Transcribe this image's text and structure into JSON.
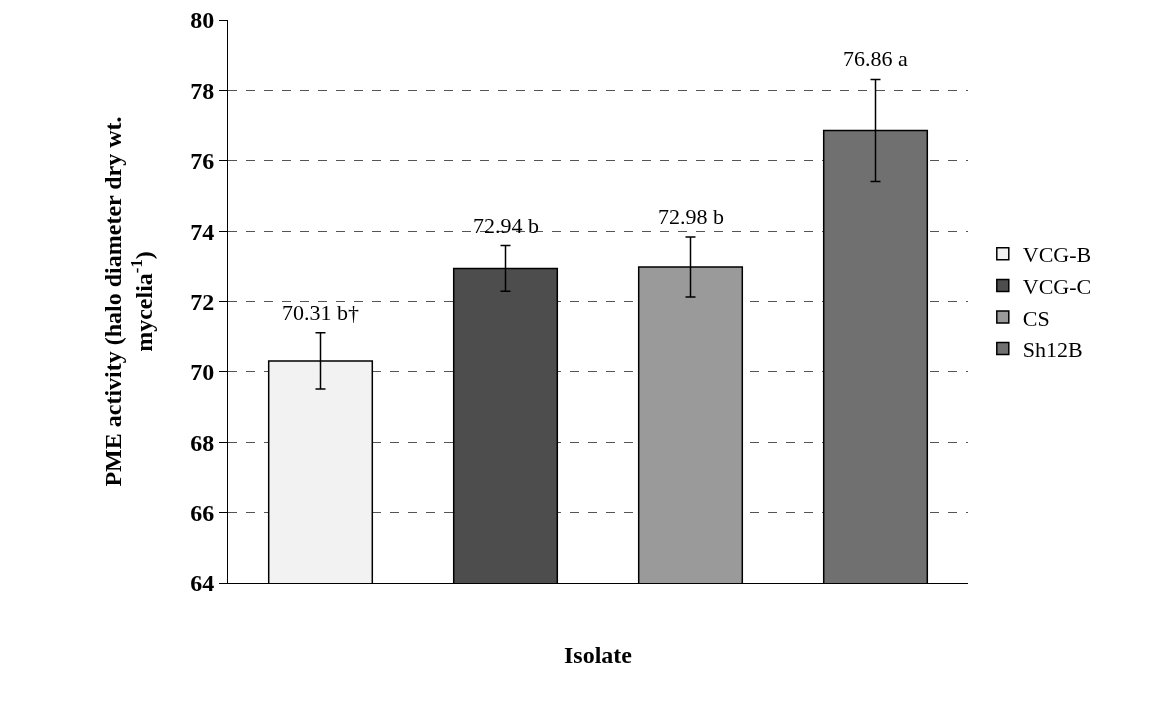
{
  "chart_data": {
    "type": "bar",
    "xlabel": "Isolate",
    "ylabel": "PME activity (halo diameter dry wt. mycelia$^{-1}$)",
    "categories": [
      null,
      null,
      null,
      null
    ],
    "series": [
      {
        "name": "VCG-B",
        "color": "#f2f2f2",
        "values": [
          70.31,
          null,
          null,
          null
        ],
        "errors": [
          0.8,
          null,
          null,
          null
        ],
        "value_labels": [
          "70.31 b†",
          null,
          null,
          null
        ]
      },
      {
        "name": "VCG-C",
        "color": "#4d4d4d",
        "values": [
          null,
          72.94,
          null,
          null
        ],
        "errors": [
          null,
          0.65,
          null,
          null
        ],
        "value_labels": [
          null,
          "72.94 b",
          null,
          null
        ]
      },
      {
        "name": "CS",
        "color": "#9a9a9a",
        "values": [
          null,
          null,
          72.98,
          null
        ],
        "errors": [
          null,
          null,
          0.85,
          null
        ],
        "value_labels": [
          null,
          null,
          "72.98 b",
          null
        ]
      },
      {
        "name": "Sh12B",
        "color": "#707070",
        "values": [
          null,
          null,
          null,
          76.86
        ],
        "errors": [
          null,
          null,
          null,
          1.45
        ],
        "value_labels": [
          null,
          null,
          null,
          "76.86 a"
        ]
      }
    ],
    "ylim": [
      64,
      80
    ],
    "yticks": [
      64,
      66,
      68,
      70,
      72,
      74,
      76,
      78,
      80
    ],
    "grid": "y",
    "legend": "right"
  }
}
